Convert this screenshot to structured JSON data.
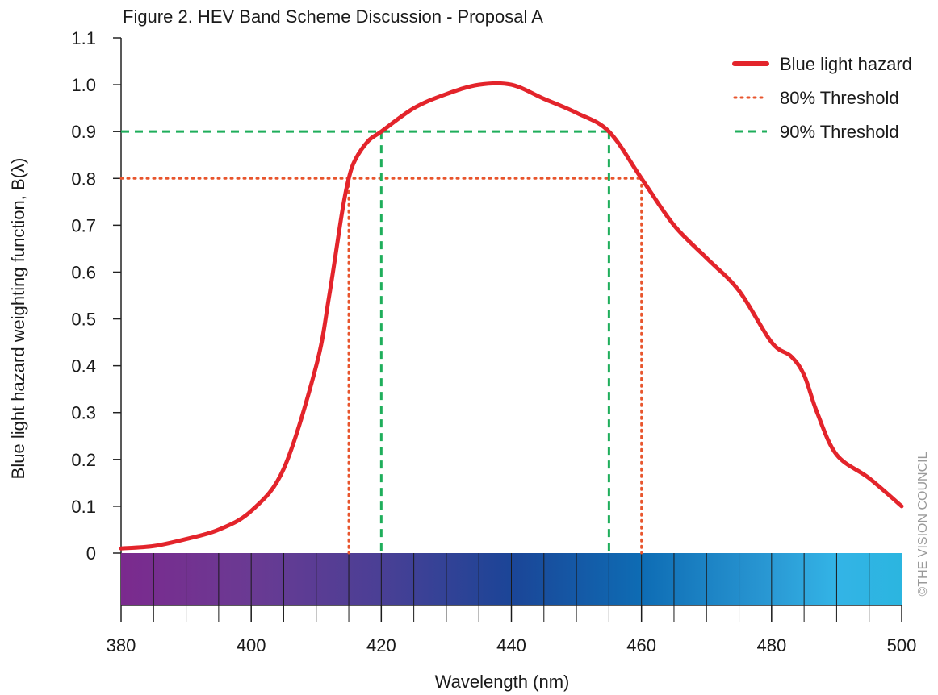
{
  "chart_data": {
    "type": "line",
    "title": "Figure 2.  HEV Band Scheme Discussion - Proposal A",
    "xlabel": "Wavelength (nm)",
    "ylabel": "Blue light hazard weighting function, B(λ)",
    "xlim": [
      380,
      500
    ],
    "ylim": [
      0,
      1.1
    ],
    "xticks": [
      380,
      400,
      420,
      440,
      460,
      480,
      500
    ],
    "xtick_labels": [
      "380",
      "400",
      "420",
      "440",
      "460",
      "480",
      "500"
    ],
    "yticks": [
      0,
      0.1,
      0.2,
      0.3,
      0.4,
      0.5,
      0.6,
      0.7,
      0.8,
      0.9,
      1.0,
      1.1
    ],
    "ytick_labels": [
      "0",
      "0.1",
      "0.2",
      "0.3",
      "0.4",
      "0.5",
      "0.6",
      "0.7",
      "0.8",
      "0.9",
      "1.0",
      "1.1"
    ],
    "grid": false,
    "legend_position": "top-right",
    "series": [
      {
        "name": "Blue light hazard",
        "color": "#e3242b",
        "style": "solid",
        "x": [
          380,
          385,
          390,
          395,
          400,
          405,
          410,
          412,
          414,
          415,
          416,
          418,
          420,
          425,
          430,
          435,
          440,
          445,
          450,
          455,
          460,
          465,
          470,
          475,
          480,
          483,
          485,
          487,
          490,
          495,
          500
        ],
        "y": [
          0.01,
          0.015,
          0.03,
          0.05,
          0.09,
          0.18,
          0.4,
          0.55,
          0.73,
          0.8,
          0.84,
          0.88,
          0.9,
          0.95,
          0.98,
          1.0,
          1.0,
          0.97,
          0.94,
          0.9,
          0.8,
          0.7,
          0.63,
          0.56,
          0.45,
          0.42,
          0.38,
          0.3,
          0.21,
          0.16,
          0.1
        ]
      },
      {
        "name": "80% Threshold",
        "color": "#e8552d",
        "style": "dotted",
        "level": 0.8,
        "x_range": [
          415,
          460
        ]
      },
      {
        "name": "90% Threshold",
        "color": "#1fae5b",
        "style": "dashed",
        "level": 0.9,
        "x_range": [
          420,
          455
        ]
      }
    ],
    "spectrum_band": {
      "x_range": [
        380,
        500
      ],
      "stops": [
        {
          "x": 380,
          "color": "#7b2a8e"
        },
        {
          "x": 400,
          "color": "#6a3a93"
        },
        {
          "x": 420,
          "color": "#4a3f95"
        },
        {
          "x": 440,
          "color": "#1b4597"
        },
        {
          "x": 460,
          "color": "#0e6cb4"
        },
        {
          "x": 480,
          "color": "#2a99d4"
        },
        {
          "x": 490,
          "color": "#33b4e6"
        },
        {
          "x": 500,
          "color": "#2bb5e0"
        }
      ]
    },
    "watermark": "©THE VISION COUNCIL"
  }
}
